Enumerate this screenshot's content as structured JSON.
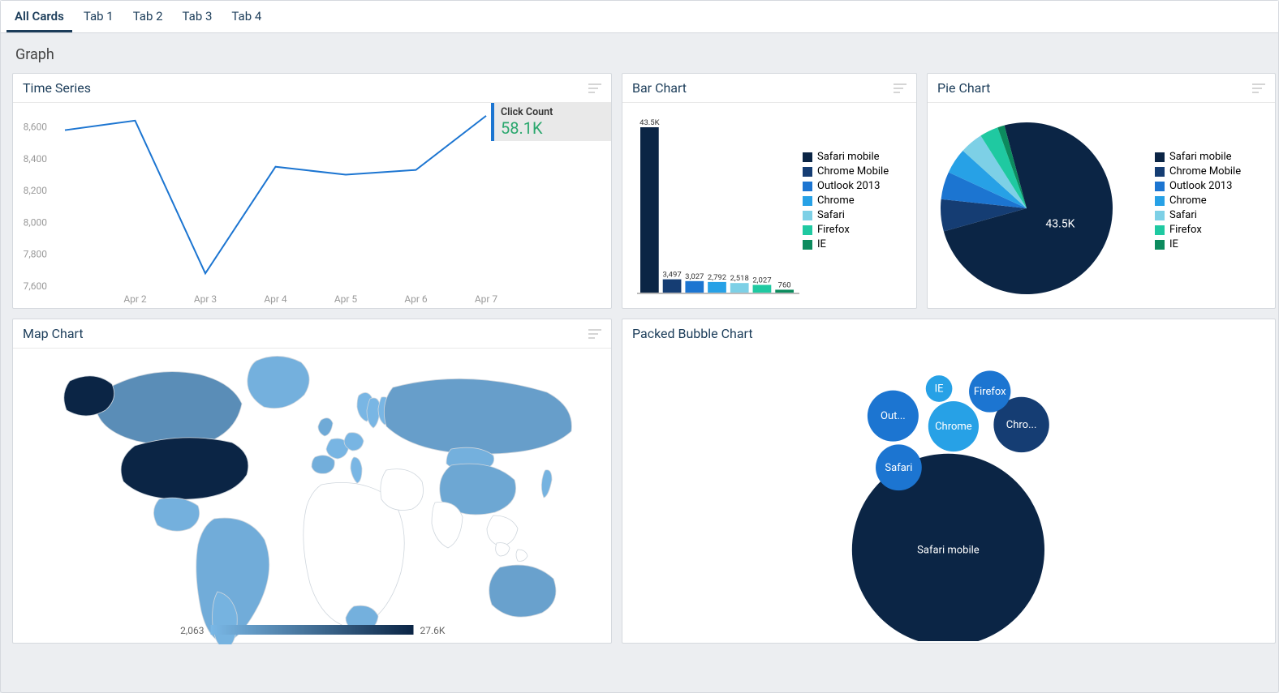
{
  "tabs": [
    "All Cards",
    "Tab 1",
    "Tab 2",
    "Tab 3",
    "Tab 4"
  ],
  "active_tab_index": 0,
  "section_title": "Graph",
  "time_series": {
    "title": "Time Series",
    "type": "line",
    "callout_label": "Click Count",
    "callout_value": "58.1K",
    "line_color": "#1c75d1",
    "axis_color": "#9a9a9a",
    "tick_fontsize": 12,
    "x_labels": [
      "Apr 2",
      "Apr 3",
      "Apr 4",
      "Apr 5",
      "Apr 6",
      "Apr 7"
    ],
    "y_ticks": [
      7600,
      7800,
      8000,
      8200,
      8400,
      8600
    ],
    "ylim": [
      7600,
      8700
    ],
    "points": [
      {
        "x": "Apr 1.3",
        "y": 8580
      },
      {
        "x": "Apr 2",
        "y": 8640
      },
      {
        "x": "Apr 3",
        "y": 7680
      },
      {
        "x": "Apr 4",
        "y": 8350
      },
      {
        "x": "Apr 5",
        "y": 8300
      },
      {
        "x": "Apr 6",
        "y": 8330
      },
      {
        "x": "Apr 7",
        "y": 8670
      }
    ],
    "line_width": 2,
    "background_color": "#ffffff"
  },
  "bar_chart": {
    "title": "Bar Chart",
    "type": "bar",
    "categories": [
      "Safari mobile",
      "Chrome Mobile",
      "Outlook 2013",
      "Chrome",
      "Safari",
      "Firefox",
      "IE"
    ],
    "values": [
      43500,
      3497,
      3027,
      2792,
      2518,
      2027,
      760
    ],
    "display_labels": [
      "43.5K",
      "3,497",
      "3,027",
      "2,792",
      "2,518",
      "2,027",
      "760"
    ],
    "colors": [
      "#0b2545",
      "#153d73",
      "#1c75d1",
      "#27a1e6",
      "#7dd0e6",
      "#1fc9a1",
      "#0c8b5e"
    ],
    "label_fontsize": 9.5,
    "bar_width": 0.82,
    "background_color": "#ffffff"
  },
  "pie_chart": {
    "title": "Pie Chart",
    "type": "pie",
    "categories": [
      "Safari mobile",
      "Chrome Mobile",
      "Outlook 2013",
      "Chrome",
      "Safari",
      "Firefox",
      "IE"
    ],
    "values": [
      43500,
      3497,
      3027,
      2792,
      2518,
      2027,
      760
    ],
    "colors": [
      "#0b2545",
      "#153d73",
      "#1c75d1",
      "#27a1e6",
      "#7dd0e6",
      "#1fc9a1",
      "#0c8b5e"
    ],
    "center_label": "43.5K",
    "center_label_on_slice": 0,
    "center_label_color": "#ffffff",
    "center_label_fontsize": 14,
    "background_color": "#ffffff"
  },
  "map_chart": {
    "title": "Map Chart",
    "type": "map",
    "legend_min_label": "2,063",
    "legend_max_label": "27.6K",
    "gradient_left": "#7ab8e6",
    "gradient_right": "#0b2545",
    "outline_color": "#cfd6dd",
    "fill_empty": "#ffffff",
    "countries": {
      "United States": 27600,
      "Canada": 9500,
      "Mexico": 3500,
      "Brazil": 4200,
      "Argentina": 3000,
      "Chile": 2500,
      "Colombia": 2200,
      "Peru": 2200,
      "United Kingdom": 4500,
      "Spain": 3800,
      "France": 2600,
      "Germany": 2600,
      "Italy": 2400,
      "Norway": 2400,
      "Sweden": 2400,
      "Finland": 2400,
      "Russia": 6500,
      "China": 5000,
      "Mongolia": 3500,
      "Japan": 3000,
      "Australia": 6000,
      "South Africa": 3500,
      "Greenland": 3500
    },
    "min": 2063,
    "max": 27600
  },
  "packed_bubble": {
    "title": "Packed Bubble Chart",
    "type": "packed-bubble",
    "text_color": "#ffffff",
    "font_size": 13,
    "background_color": "#ffffff",
    "bubbles": [
      {
        "label": "Safari mobile",
        "value": 43500,
        "color": "#0b2545",
        "cx_pct": 49.8,
        "cy_pct": 69.8,
        "r_pct": 30.5
      },
      {
        "label": "Chro...",
        "value": 3497,
        "color": "#153d73",
        "cx_pct": 66.5,
        "cy_pct": 25.7,
        "r_pct": 8.8
      },
      {
        "label": "Out...",
        "value": 3027,
        "color": "#1c75d1",
        "cx_pct": 37.2,
        "cy_pct": 22.6,
        "r_pct": 8.1
      },
      {
        "label": "Chrome",
        "value": 2792,
        "color": "#27a1e6",
        "cx_pct": 51.0,
        "cy_pct": 26.3,
        "r_pct": 8.0
      },
      {
        "label": "Safari",
        "value": 2518,
        "color": "#1c75d1",
        "cx_pct": 38.5,
        "cy_pct": 40.8,
        "r_pct": 7.3
      },
      {
        "label": "Firefox",
        "value": 2027,
        "color": "#1c75d1",
        "cx_pct": 59.3,
        "cy_pct": 14.0,
        "r_pct": 6.6
      },
      {
        "label": "IE",
        "value": 760,
        "color": "#27a1e6",
        "cx_pct": 47.7,
        "cy_pct": 13.0,
        "r_pct": 4.2
      }
    ]
  }
}
